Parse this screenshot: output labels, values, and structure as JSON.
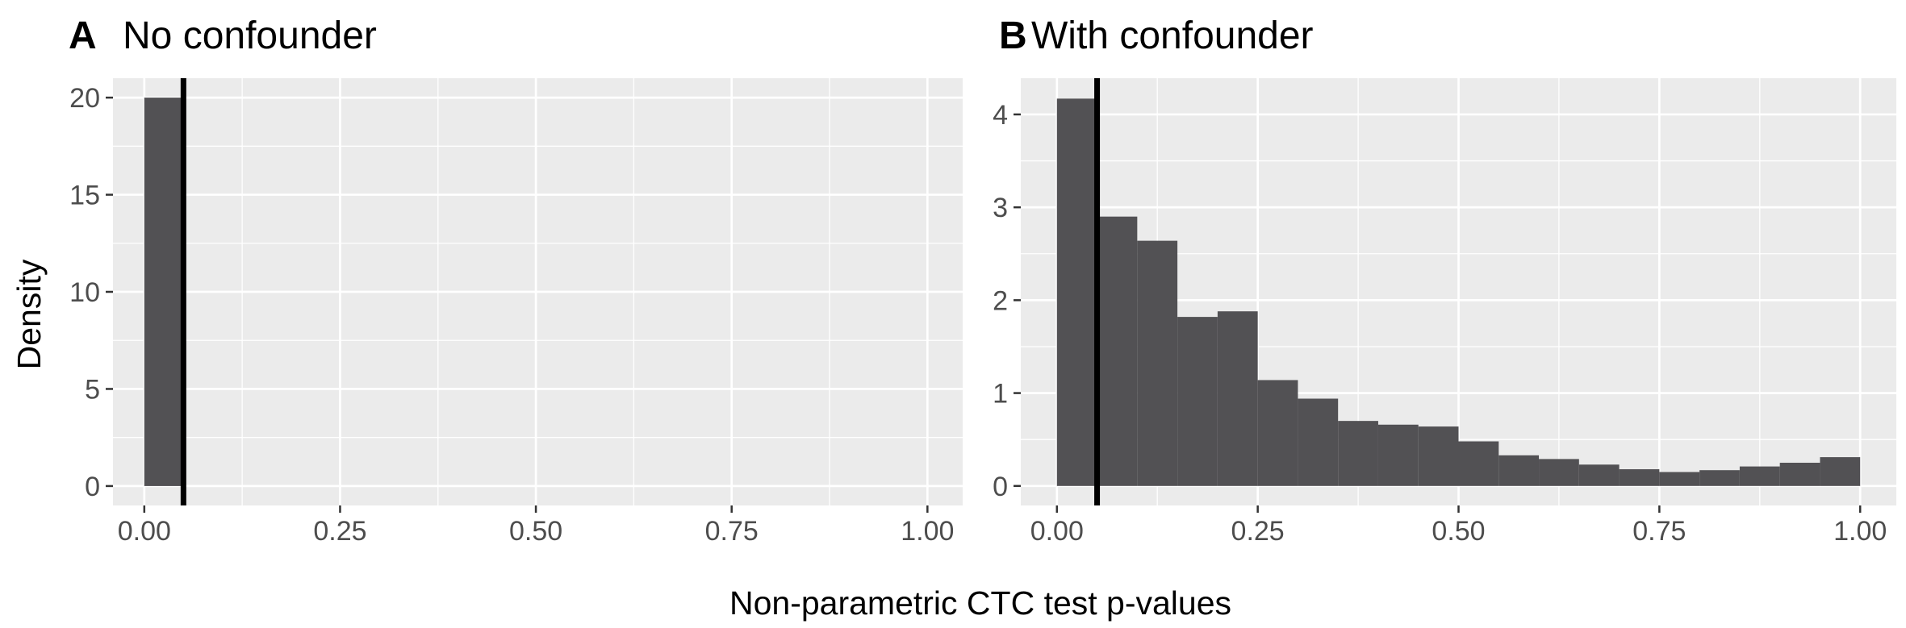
{
  "xlabel": "Non-parametric CTC test p-values",
  "ylabel": "Density",
  "colors": {
    "panel_bg": "#EBEBEB",
    "grid": "#FFFFFF",
    "bar_fill": "#525154",
    "vline": "#000000",
    "tick_text": "#4D4D4D"
  },
  "chart_data": [
    {
      "type": "bar",
      "tag": "A",
      "title": "No confounder",
      "bin_width": 0.05,
      "bins": [
        0.0
      ],
      "values": [
        20
      ],
      "vline": 0.05,
      "xlim": [
        -0.04,
        1.045
      ],
      "ylim": [
        -1.0,
        21.0
      ],
      "x_ticks": [
        0,
        0.25,
        0.5,
        0.75,
        1
      ],
      "x_tick_labels": [
        "0.00",
        "0.25",
        "0.50",
        "0.75",
        "1.00"
      ],
      "y_ticks": [
        0,
        5,
        10,
        15,
        20
      ],
      "y_tick_labels": [
        "0",
        "5",
        "10",
        "15",
        "20"
      ],
      "grid": true
    },
    {
      "type": "bar",
      "tag": "B",
      "title": "With confounder",
      "bin_width": 0.05,
      "bins": [
        0.0,
        0.05,
        0.1,
        0.15,
        0.2,
        0.25,
        0.3,
        0.35,
        0.4,
        0.45,
        0.5,
        0.55,
        0.6,
        0.65,
        0.7,
        0.75,
        0.8,
        0.85,
        0.9,
        0.95
      ],
      "values": [
        4.17,
        2.9,
        2.64,
        1.82,
        1.88,
        1.14,
        0.94,
        0.7,
        0.66,
        0.64,
        0.48,
        0.33,
        0.29,
        0.23,
        0.18,
        0.15,
        0.17,
        0.21,
        0.25,
        0.31
      ],
      "vline": 0.05,
      "xlim": [
        -0.045,
        1.045
      ],
      "ylim": [
        -0.21,
        4.39
      ],
      "x_ticks": [
        0,
        0.25,
        0.5,
        0.75,
        1
      ],
      "x_tick_labels": [
        "0.00",
        "0.25",
        "0.50",
        "0.75",
        "1.00"
      ],
      "y_ticks": [
        0,
        1,
        2,
        3,
        4
      ],
      "y_tick_labels": [
        "0",
        "1",
        "2",
        "3",
        "4"
      ],
      "grid": true
    }
  ]
}
